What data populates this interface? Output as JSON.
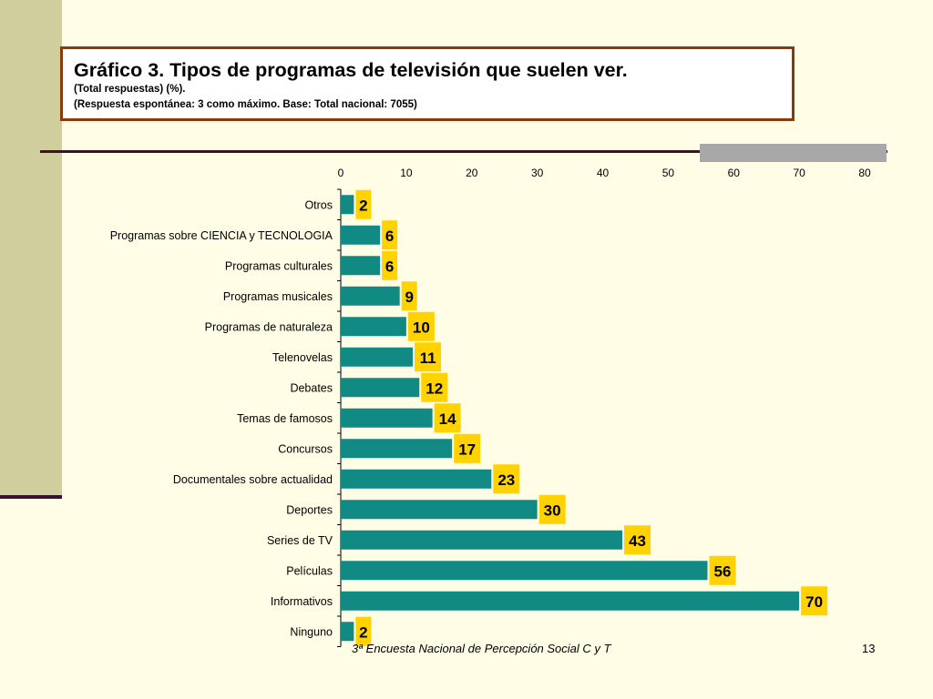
{
  "header": {
    "title": "Gráfico 3. Tipos de programas de televisión que suelen ver.",
    "subtitle_1": "(Total respuestas) (%).",
    "subtitle_2": "(Respuesta espontánea: 3 como máximo. Base: Total nacional: 7055)"
  },
  "footer": {
    "note": "3ª Encuesta Nacional de Percepción Social C y T",
    "page": "13"
  },
  "colors": {
    "bar": "#118A84",
    "label_bg": "#FFD200",
    "background": "#FFFDE5",
    "title_border": "#8B3A0E"
  },
  "chart_data": {
    "type": "bar",
    "orientation": "horizontal",
    "categories": [
      "Otros",
      "Programas sobre CIENCIA y TECNOLOGIA",
      "Programas culturales",
      "Programas musicales",
      "Programas de naturaleza",
      "Telenovelas",
      "Debates",
      "Temas de famosos",
      "Concursos",
      "Documentales sobre actualidad",
      "Deportes",
      "Series de TV",
      "Películas",
      "Informativos",
      "Ninguno"
    ],
    "values": [
      2,
      6,
      6,
      9,
      10,
      11,
      12,
      14,
      17,
      23,
      30,
      43,
      56,
      70,
      2
    ],
    "xlim": [
      0,
      80
    ],
    "x_ticks": [
      "0",
      "10",
      "20",
      "30",
      "40",
      "50",
      "60",
      "70",
      "80"
    ],
    "x_axis_position": "top",
    "grid": false,
    "legend": "none"
  }
}
